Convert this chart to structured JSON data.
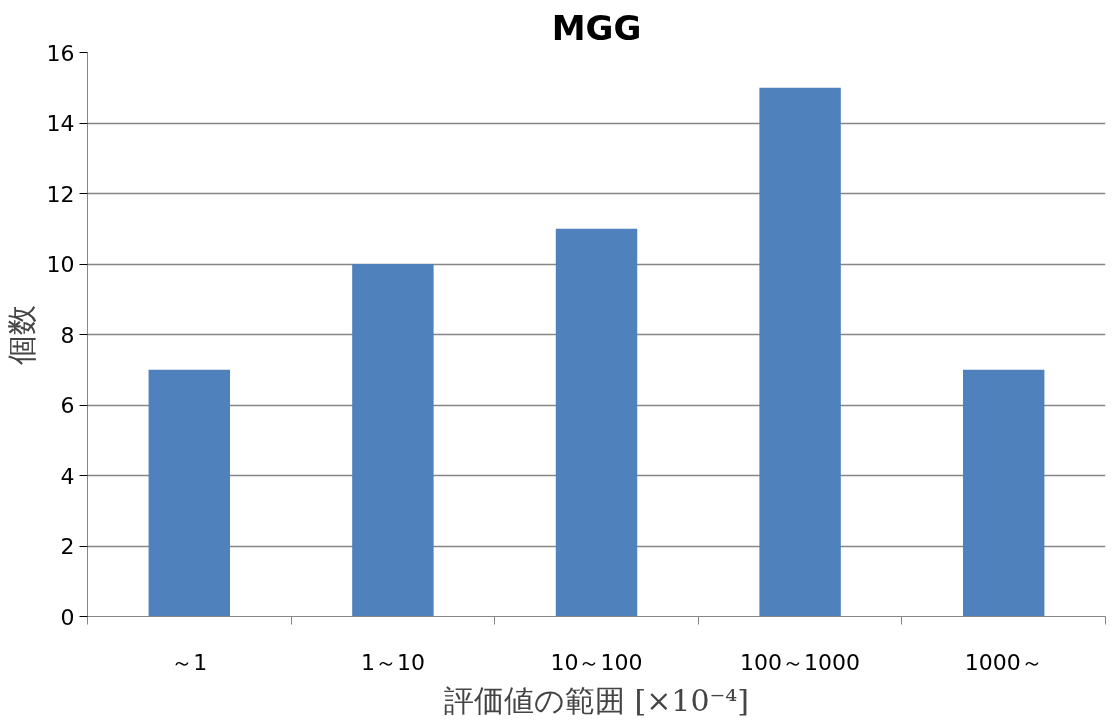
{
  "chart_data": {
    "type": "bar",
    "title": "MGG",
    "xlabel": "評価値の範囲 [×10⁻⁴]",
    "ylabel": "個数",
    "categories": [
      "～1",
      "1～10",
      "10～100",
      "100～1000",
      "1000～"
    ],
    "values": [
      7,
      10,
      11,
      15,
      7
    ],
    "color": "#4f81bd",
    "ylim": [
      0,
      16
    ],
    "yticks": [
      0,
      2,
      4,
      6,
      8,
      10,
      12,
      14,
      16
    ],
    "grid": "y"
  }
}
